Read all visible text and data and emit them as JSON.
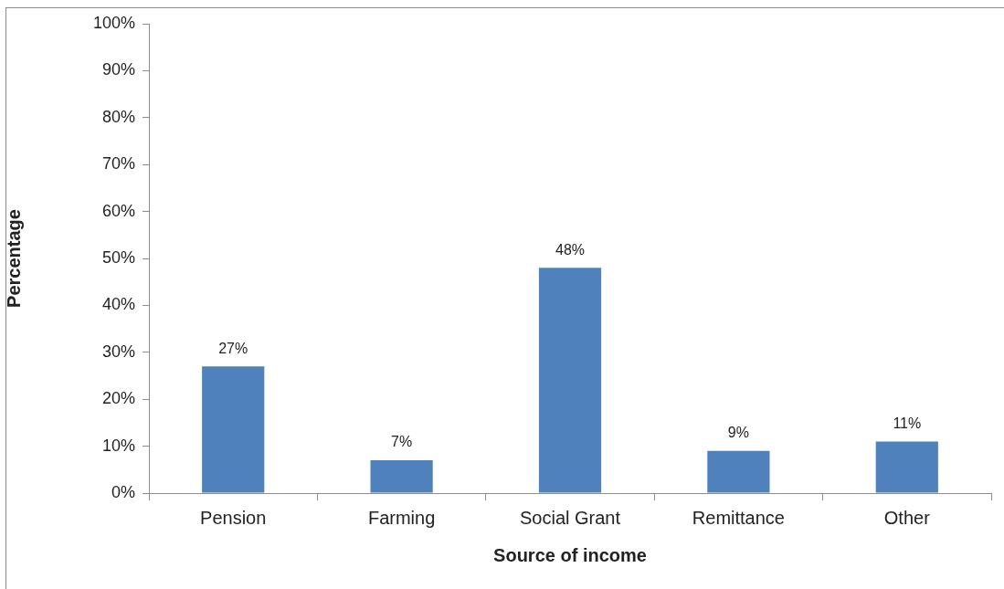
{
  "chart_data": {
    "type": "bar",
    "xlabel": "Source of income",
    "ylabel": "Percentage",
    "categories": [
      "Pension",
      "Farming",
      "Social Grant",
      "Remittance",
      "Other"
    ],
    "values": [
      27,
      7,
      48,
      9,
      11
    ],
    "color": "#4f81bd",
    "value_labels": [
      "27%",
      "7%",
      "48%",
      "9%",
      "11%"
    ],
    "ylim": [
      0,
      100
    ],
    "yticks": [
      {
        "value": 0,
        "label": "0%"
      },
      {
        "value": 10,
        "label": "10%"
      },
      {
        "value": 20,
        "label": "20%"
      },
      {
        "value": 30,
        "label": "30%"
      },
      {
        "value": 40,
        "label": "40%"
      },
      {
        "value": 50,
        "label": "50%"
      },
      {
        "value": 60,
        "label": "60%"
      },
      {
        "value": 70,
        "label": "70%"
      },
      {
        "value": 80,
        "label": "80%"
      },
      {
        "value": 90,
        "label": "90%"
      },
      {
        "value": 100,
        "label": "100%"
      }
    ]
  }
}
